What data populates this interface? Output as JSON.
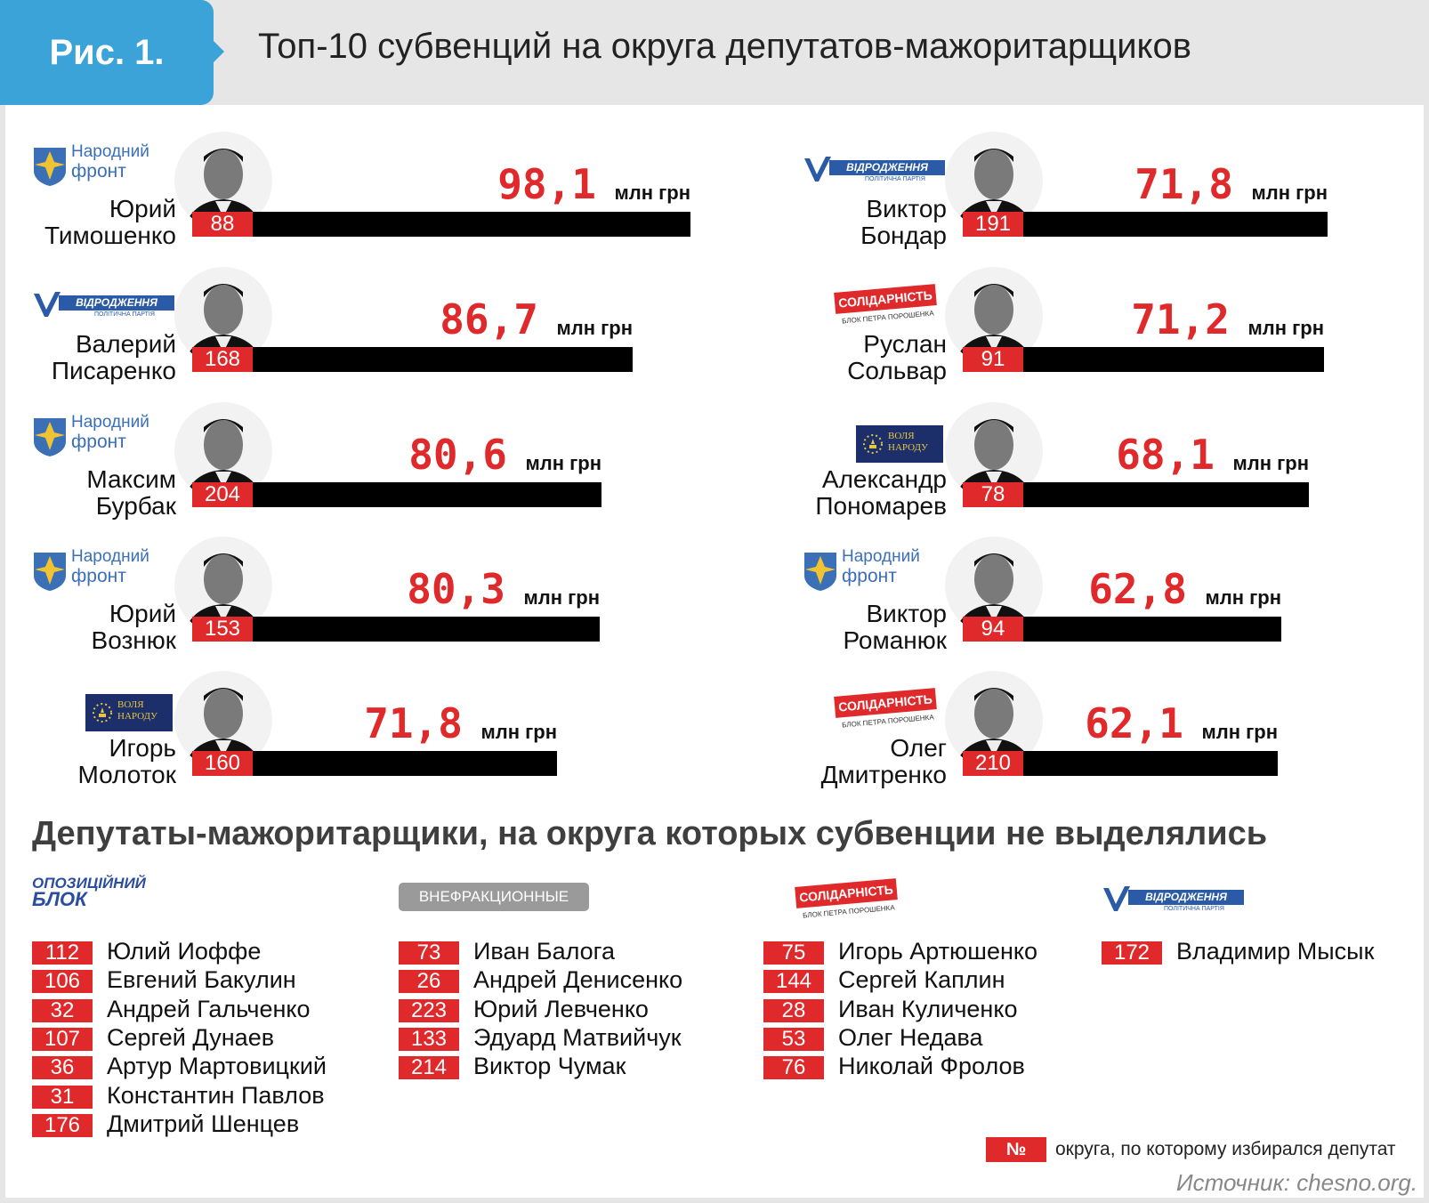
{
  "figure_label": "Рис. 1.",
  "title": "Топ-10 субвенций на округа депутатов-мажоритарщиков",
  "chart_data": {
    "type": "bar",
    "title": "Топ-10 субвенций на округа депутатов-мажоритарщиков",
    "unit": "млн грн",
    "entries": [
      {
        "first": "Юрий",
        "last": "Тимошенко",
        "party": "narodny-front",
        "district": "88",
        "value": 98.1,
        "label": "98,1"
      },
      {
        "first": "Валерий",
        "last": "Писаренко",
        "party": "vidrodzhennya",
        "district": "168",
        "value": 86.7,
        "label": "86,7"
      },
      {
        "first": "Максим",
        "last": "Бурбак",
        "party": "narodny-front",
        "district": "204",
        "value": 80.6,
        "label": "80,6"
      },
      {
        "first": "Юрий",
        "last": "Вознюк",
        "party": "narodny-front",
        "district": "153",
        "value": 80.3,
        "label": "80,3"
      },
      {
        "first": "Игорь",
        "last": "Молоток",
        "party": "volya-narodu",
        "district": "160",
        "value": 71.8,
        "label": "71,8"
      },
      {
        "first": "Виктор",
        "last": "Бондар",
        "party": "vidrodzhennya",
        "district": "191",
        "value": 71.8,
        "label": "71,8"
      },
      {
        "first": "Руслан",
        "last": "Сольвар",
        "party": "solidarnist",
        "district": "91",
        "value": 71.2,
        "label": "71,2"
      },
      {
        "first": "Александр",
        "last": "Пономарев",
        "party": "volya-narodu",
        "district": "78",
        "value": 68.1,
        "label": "68,1"
      },
      {
        "first": "Виктор",
        "last": "Романюк",
        "party": "narodny-front",
        "district": "94",
        "value": 62.8,
        "label": "62,8"
      },
      {
        "first": "Олег",
        "last": "Дмитренко",
        "party": "solidarnist",
        "district": "210",
        "value": 62.1,
        "label": "62,1"
      }
    ]
  },
  "logos": {
    "narodny_front": [
      "Народний",
      "фронт"
    ],
    "vidrodzhennya": "ВІДРОДЖЕННЯ",
    "vidrodzhennya_sub": "ПОЛІТИЧНА ПАРТІЯ",
    "solidarnist": "СОЛІДАРНІСТЬ",
    "solidarnist_sub": "БЛОК ПЕТРА ПОРОШЕНКА",
    "volya_narodu": [
      "ВОЛЯ",
      "НАРОДУ"
    ],
    "opposition_block": [
      "ОПОЗИЦІЙНИЙ",
      "БЛОК"
    ]
  },
  "section_title": "Депутаты-мажоритарщики, на округа которых субвенции не выделялись",
  "groups": [
    {
      "party": "opposition-block",
      "members": [
        {
          "district": "112",
          "name": "Юлий Иоффе"
        },
        {
          "district": "106",
          "name": "Евгений Бакулин"
        },
        {
          "district": "32",
          "name": "Андрей Гальченко"
        },
        {
          "district": "107",
          "name": "Сергей Дунаев"
        },
        {
          "district": "36",
          "name": "Артур Мартовицкий"
        },
        {
          "district": "31",
          "name": "Константин Павлов"
        },
        {
          "district": "176",
          "name": "Дмитрий Шенцев"
        }
      ]
    },
    {
      "party": "vnefraktsionnye",
      "badge": "ВНЕФРАКЦИОННЫЕ",
      "members": [
        {
          "district": "73",
          "name": "Иван Балога"
        },
        {
          "district": "26",
          "name": "Андрей Денисенко"
        },
        {
          "district": "223",
          "name": "Юрий Левченко"
        },
        {
          "district": "133",
          "name": "Эдуард Матвийчук"
        },
        {
          "district": "214",
          "name": "Виктор Чумак"
        }
      ]
    },
    {
      "party": "solidarnist",
      "members": [
        {
          "district": "75",
          "name": "Игорь Артюшенко"
        },
        {
          "district": "144",
          "name": "Сергей Каплин"
        },
        {
          "district": "28",
          "name": "Иван Куличенко"
        },
        {
          "district": "53",
          "name": "Олег Недава"
        },
        {
          "district": "76",
          "name": "Николай Фролов"
        }
      ]
    },
    {
      "party": "vidrodzhennya",
      "members": [
        {
          "district": "172",
          "name": "Владимир Мысык"
        }
      ]
    }
  ],
  "legend": {
    "symbol": "№",
    "text": "округа, по которому избирался депутат"
  },
  "source": "Источник: chesno.org.",
  "colors": {
    "accent_red": "#e0292b",
    "badge_blue": "#3ba3d8",
    "bar": "#000000",
    "party_blue": "#2b5aa6"
  }
}
